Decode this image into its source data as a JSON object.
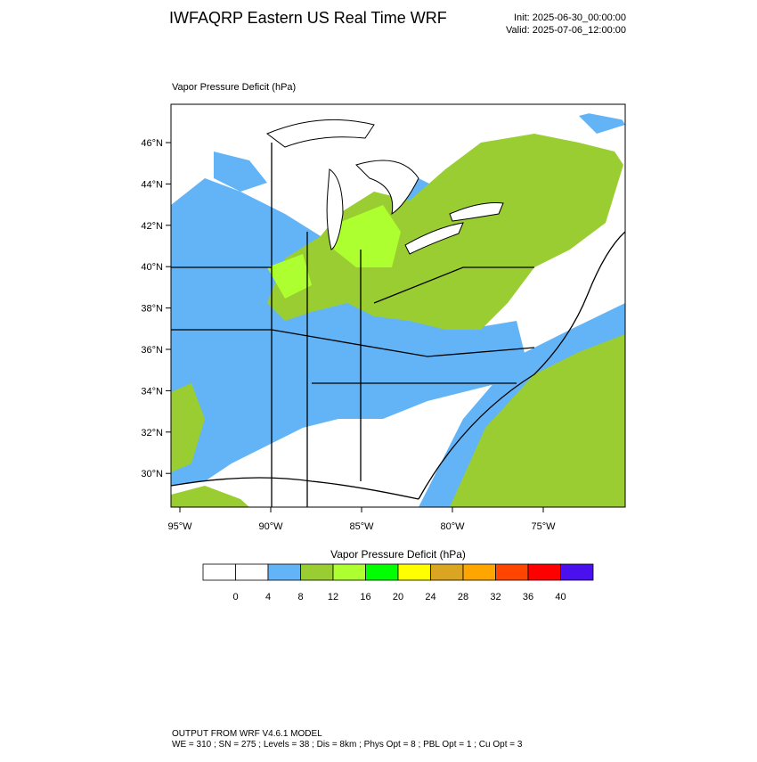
{
  "header": {
    "title": "IWFAQRP Eastern US Real Time WRF",
    "init": "Init: 2025-06-30_00:00:00",
    "valid": "Valid: 2025-07-06_12:00:00"
  },
  "map": {
    "label": "Vapor Pressure Deficit   (hPa)",
    "lat_labels": [
      "46°N",
      "44°N",
      "42°N",
      "40°N",
      "38°N",
      "36°N",
      "34°N",
      "32°N",
      "30°N"
    ],
    "lon_labels": [
      "95°W",
      "90°W",
      "85°W",
      "80°W",
      "75°W"
    ]
  },
  "colorbar": {
    "title": "Vapor Pressure Deficit  (hPa)",
    "ticks": [
      0,
      4,
      8,
      12,
      16,
      20,
      24,
      28,
      32,
      36,
      40
    ],
    "colors": [
      "#ffffff",
      "#ffffff",
      "#63b4f6",
      "#9acd32",
      "#adff2f",
      "#00ff00",
      "#ffff00",
      "#daa520",
      "#ffa500",
      "#ff4500",
      "#ff0000",
      "#4a10ee"
    ]
  },
  "footer": {
    "line1": "OUTPUT FROM WRF V4.6.1 MODEL",
    "line2": "WE = 310 ; SN = 275 ; Levels = 38 ; Dis = 8km ; Phys Opt = 8 ; PBL Opt = 1 ; Cu Opt = 3"
  }
}
